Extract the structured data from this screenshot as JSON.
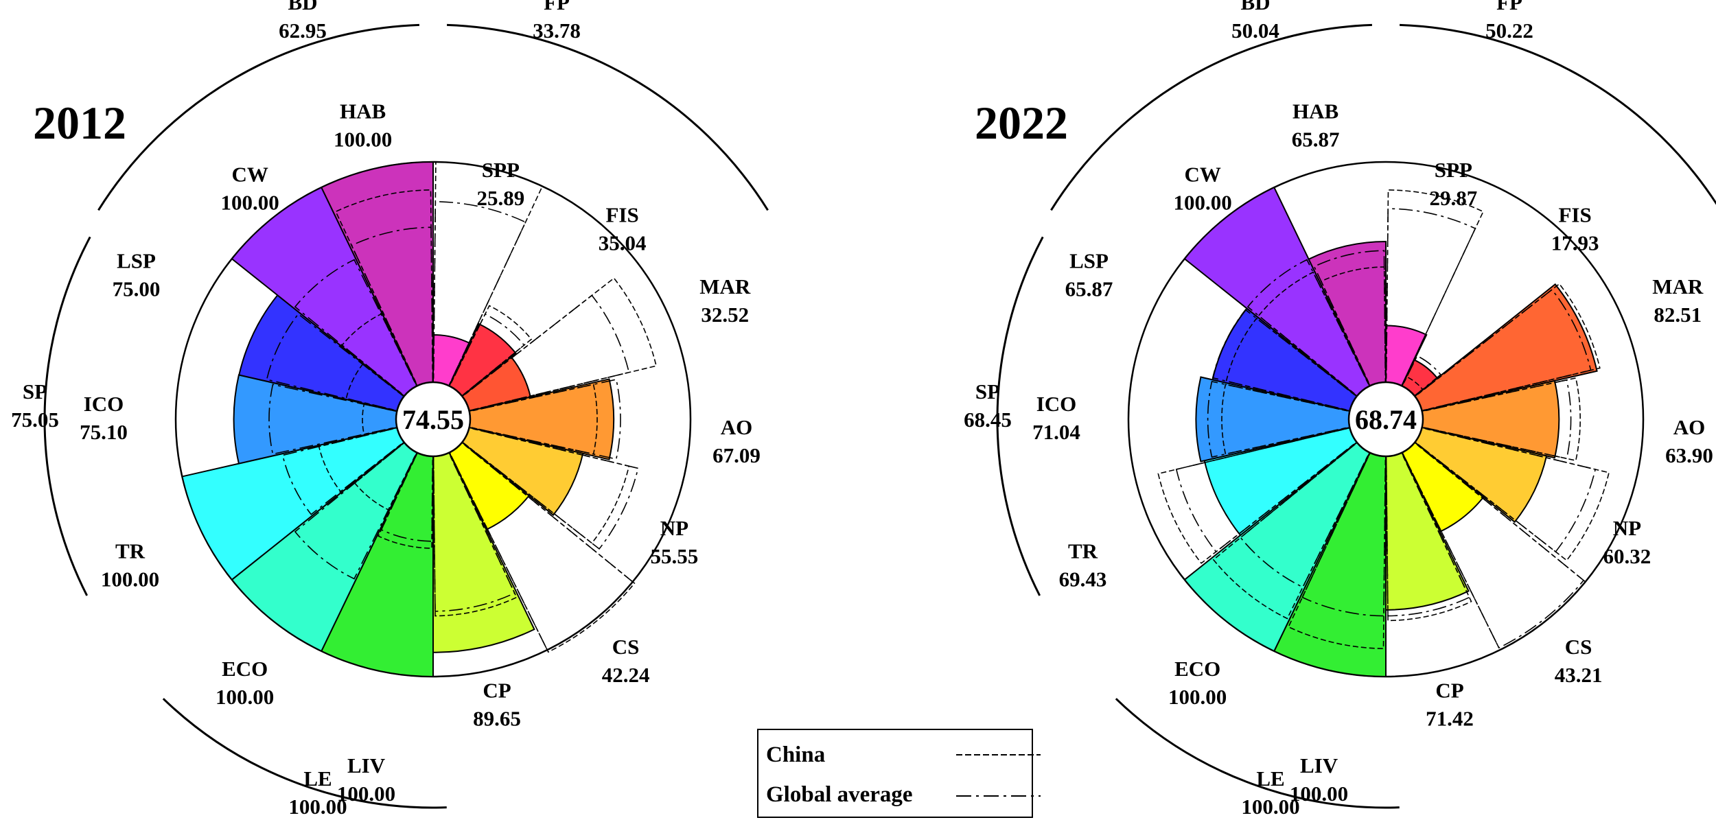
{
  "chart_data": [
    {
      "type": "polar-bar",
      "title": "2012",
      "overall_score": "74.55",
      "petals": [
        {
          "code": "SPP",
          "value": "25.89",
          "score": 25.89,
          "color": "#ff3dcc"
        },
        {
          "code": "FIS",
          "value": "35.04",
          "score": 35.04,
          "color": "#ff3344"
        },
        {
          "code": "MAR",
          "value": "32.52",
          "score": 32.52,
          "color": "#ff5533"
        },
        {
          "code": "AO",
          "value": "67.09",
          "score": 67.09,
          "color": "#ff9933"
        },
        {
          "code": "NP",
          "value": "55.55",
          "score": 55.55,
          "color": "#ffcc33"
        },
        {
          "code": "CS",
          "value": "42.24",
          "score": 42.24,
          "color": "#ffff00"
        },
        {
          "code": "CP",
          "value": "89.65",
          "score": 89.65,
          "color": "#ccff33"
        },
        {
          "code": "LIV",
          "value": "100.00",
          "score": 100.0,
          "color": "#33ee33"
        },
        {
          "code": "ECO",
          "value": "100.00",
          "score": 100.0,
          "color": "#33ffcc"
        },
        {
          "code": "TR",
          "value": "100.00",
          "score": 100.0,
          "color": "#33ffff"
        },
        {
          "code": "ICO",
          "value": "75.10",
          "score": 75.1,
          "color": "#3399ff"
        },
        {
          "code": "LSP",
          "value": "75.00",
          "score": 75.0,
          "color": "#3333ff"
        },
        {
          "code": "CW",
          "value": "100.00",
          "score": 100.0,
          "color": "#9933ff"
        },
        {
          "code": "HAB",
          "value": "100.00",
          "score": 100.0,
          "color": "#cc33bb"
        }
      ],
      "china": [
        100,
        44,
        88,
        60,
        76,
        101,
        74,
        45,
        33,
        40,
        20,
        28,
        40,
        88
      ],
      "global_average": [
        83,
        40,
        76,
        70,
        80,
        100,
        72,
        42,
        66,
        56,
        60,
        63,
        66,
        72
      ],
      "groups": [
        {
          "code": "BD",
          "value": "62.95"
        },
        {
          "code": "FP",
          "value": "33.78"
        },
        {
          "code": "SP",
          "value": "75.05"
        },
        {
          "code": "LE",
          "value": "100.00"
        }
      ]
    },
    {
      "type": "polar-bar",
      "title": "2022",
      "overall_score": "68.74",
      "petals": [
        {
          "code": "SPP",
          "value": "29.87",
          "score": 29.87,
          "color": "#ff3dcc"
        },
        {
          "code": "FIS",
          "value": "17.93",
          "score": 17.93,
          "color": "#ff3344"
        },
        {
          "code": "MAR",
          "value": "82.51",
          "score": 82.51,
          "color": "#ff6633"
        },
        {
          "code": "AO",
          "value": "63.90",
          "score": 63.9,
          "color": "#ff9933"
        },
        {
          "code": "NP",
          "value": "60.32",
          "score": 60.32,
          "color": "#ffcc33"
        },
        {
          "code": "CS",
          "value": "43.21",
          "score": 43.21,
          "color": "#ffff00"
        },
        {
          "code": "CP",
          "value": "71.42",
          "score": 71.42,
          "color": "#ccff33"
        },
        {
          "code": "LIV",
          "value": "100.00",
          "score": 100.0,
          "color": "#33ee33"
        },
        {
          "code": "ECO",
          "value": "100.00",
          "score": 100.0,
          "color": "#33ffcc"
        },
        {
          "code": "TR",
          "value": "69.43",
          "score": 69.43,
          "color": "#33ffff"
        },
        {
          "code": "ICO",
          "value": "71.04",
          "score": 71.04,
          "color": "#3399ff"
        },
        {
          "code": "LSP",
          "value": "65.87",
          "score": 65.87,
          "color": "#3333ff"
        },
        {
          "code": "CW",
          "value": "100.00",
          "score": 100.0,
          "color": "#9933ff"
        },
        {
          "code": "HAB",
          "value": "65.87",
          "score": 65.87,
          "color": "#cc33bb"
        }
      ],
      "china": [
        88,
        10,
        84,
        73,
        88,
        100,
        76,
        88,
        85,
        90,
        60,
        60,
        60,
        55
      ],
      "global_average": [
        80,
        20,
        80,
        69,
        82,
        99,
        74,
        74,
        70,
        82,
        66,
        66,
        66,
        62
      ],
      "groups": [
        {
          "code": "BD",
          "value": "50.04"
        },
        {
          "code": "FP",
          "value": "50.22"
        },
        {
          "code": "SP",
          "value": "68.45"
        },
        {
          "code": "LE",
          "value": "100.00"
        }
      ]
    }
  ],
  "legend": {
    "items": [
      {
        "label": "China",
        "style": "dashed"
      },
      {
        "label": "Global average",
        "style": "dash-dot"
      }
    ]
  }
}
